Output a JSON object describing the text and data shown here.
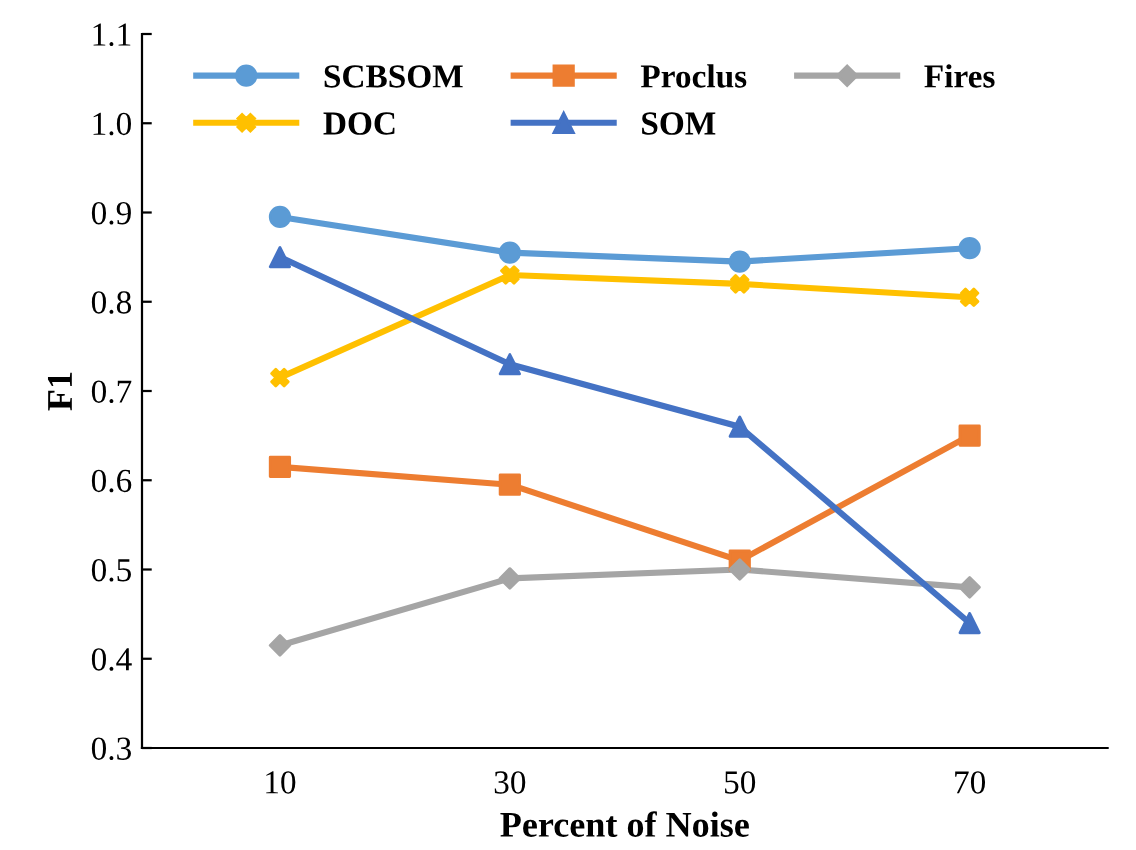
{
  "chart_data": {
    "type": "line",
    "xlabel": "Percent of Noise",
    "ylabel": "F1",
    "categories": [
      "10",
      "30",
      "50",
      "70"
    ],
    "series": [
      {
        "name": "SCBSOM",
        "color": "#5b9bd5",
        "marker": "circle",
        "values": [
          0.895,
          0.855,
          0.845,
          0.86
        ]
      },
      {
        "name": "Proclus",
        "color": "#ed7d31",
        "marker": "square",
        "values": [
          0.615,
          0.595,
          0.51,
          0.65
        ]
      },
      {
        "name": "Fires",
        "color": "#a5a5a5",
        "marker": "diamond",
        "values": [
          0.415,
          0.49,
          0.5,
          0.48
        ]
      },
      {
        "name": "DOC",
        "color": "#ffc000",
        "marker": "cross",
        "values": [
          0.715,
          0.83,
          0.82,
          0.805
        ]
      },
      {
        "name": "SOM",
        "color": "#4472c4",
        "marker": "triangle",
        "values": [
          0.85,
          0.73,
          0.66,
          0.44
        ]
      }
    ],
    "ylim": [
      0.3,
      1.1
    ],
    "yticks": [
      0.3,
      0.4,
      0.5,
      0.6,
      0.7,
      0.8,
      0.9,
      {
        "value": 1,
        "label": "1.0"
      },
      1.1
    ],
    "grid": false,
    "legend": "top"
  }
}
